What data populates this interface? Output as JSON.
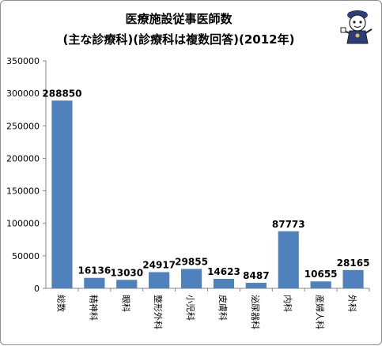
{
  "chart_data": {
    "type": "bar",
    "title": "医療施設従事医師数",
    "subtitle": "(主な診療科)(診療科は複数回答)(2012年)",
    "xlabel": "",
    "ylabel": "",
    "categories": [
      "総数",
      "精神科",
      "眼科",
      "整形外科",
      "小児科",
      "皮膚科",
      "泌尿器科",
      "内科",
      "産婦人科",
      "外科"
    ],
    "values": [
      288850,
      16136,
      13030,
      24917,
      29855,
      14623,
      8487,
      87773,
      10655,
      28165
    ],
    "ylim": [
      0,
      350000
    ],
    "yticks": [
      0,
      50000,
      100000,
      150000,
      200000,
      250000,
      300000,
      350000
    ],
    "grid": false,
    "legend": "none",
    "bar_color": "#4f81bd",
    "axis_color": "#868686",
    "data_label_color": "#000000"
  },
  "decoration": {
    "mascot_icon": "cartoon-mascot-icon"
  }
}
